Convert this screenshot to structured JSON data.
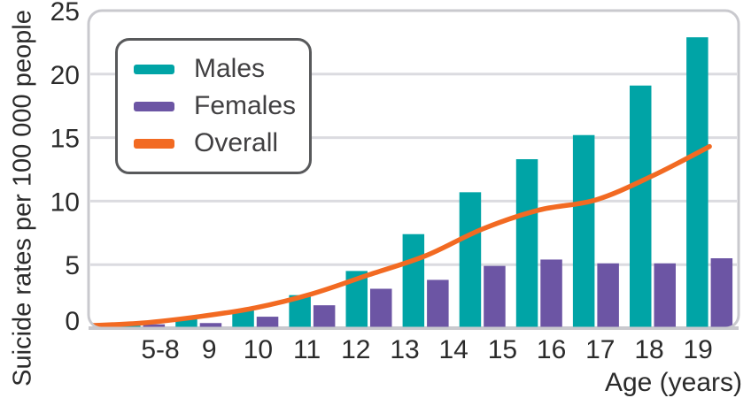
{
  "chart_data": {
    "type": "bar",
    "title": "",
    "categories": [
      "5-8",
      "9",
      "10",
      "11",
      "12",
      "13",
      "14",
      "15",
      "16",
      "17",
      "18",
      "19"
    ],
    "series": [
      {
        "name": "Males",
        "kind": "bar",
        "color": "#00A4A6",
        "values": [
          0.1,
          0.2,
          0.7,
          1.4,
          2.6,
          4.5,
          7.4,
          10.7,
          13.3,
          15.2,
          19.1,
          22.9
        ]
      },
      {
        "name": "Females",
        "kind": "bar",
        "color": "#6C55A4",
        "values": [
          0.1,
          0.3,
          0.4,
          0.9,
          1.8,
          3.1,
          3.8,
          4.9,
          5.4,
          5.1,
          5.1,
          5.5
        ]
      },
      {
        "name": "Overall",
        "kind": "line",
        "color": "#F26A22",
        "values": [
          0.2,
          0.4,
          0.9,
          1.6,
          2.7,
          4.2,
          5.7,
          7.8,
          9.3,
          10.1,
          12.0,
          14.3
        ]
      }
    ],
    "xlabel": "Age (years)",
    "ylabel": "Suicide rates per 100 000 people",
    "ylim": [
      0,
      25
    ],
    "yticks": [
      0,
      5,
      10,
      15,
      20,
      25
    ],
    "grid": true,
    "legend_position": "top-left"
  },
  "axes": {
    "x_title": "Age (years)",
    "y_title": "Suicide rates per 100 000 people"
  },
  "colors": {
    "grid": "#DBDBE0",
    "panel_border": "#C9C9CE",
    "tick_text": "#2B2B2B",
    "legend_border": "#58595B",
    "legend_text": "#414042"
  }
}
